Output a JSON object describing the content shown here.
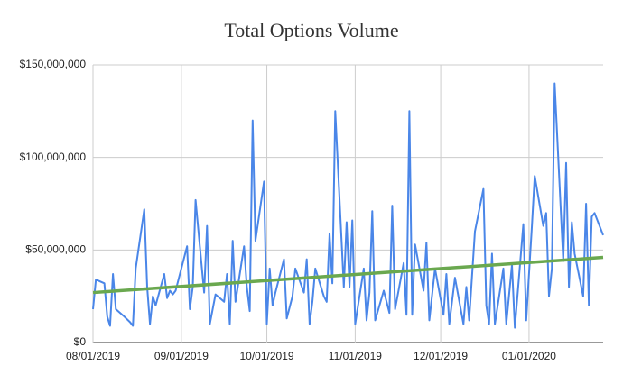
{
  "chart_data": {
    "type": "line",
    "title": "Total Options Volume",
    "x": [
      "08/01/2019",
      "08/02/2019",
      "08/05/2019",
      "08/06/2019",
      "08/07/2019",
      "08/08/2019",
      "08/09/2019",
      "08/12/2019",
      "08/14/2019",
      "08/15/2019",
      "08/16/2019",
      "08/19/2019",
      "08/20/2019",
      "08/21/2019",
      "08/22/2019",
      "08/23/2019",
      "08/26/2019",
      "08/27/2019",
      "08/28/2019",
      "08/29/2019",
      "08/30/2019",
      "09/03/2019",
      "09/04/2019",
      "09/05/2019",
      "09/06/2019",
      "09/09/2019",
      "09/10/2019",
      "09/11/2019",
      "09/13/2019",
      "09/16/2019",
      "09/17/2019",
      "09/18/2019",
      "09/19/2019",
      "09/20/2019",
      "09/23/2019",
      "09/24/2019",
      "09/25/2019",
      "09/26/2019",
      "09/27/2019",
      "09/30/2019",
      "10/01/2019",
      "10/02/2019",
      "10/03/2019",
      "10/04/2019",
      "10/07/2019",
      "10/08/2019",
      "10/10/2019",
      "10/11/2019",
      "10/14/2019",
      "10/15/2019",
      "10/16/2019",
      "10/17/2019",
      "10/18/2019",
      "10/21/2019",
      "10/22/2019",
      "10/23/2019",
      "10/24/2019",
      "10/25/2019",
      "10/28/2019",
      "10/29/2019",
      "10/30/2019",
      "10/31/2019",
      "11/01/2019",
      "11/04/2019",
      "11/05/2019",
      "11/06/2019",
      "11/07/2019",
      "11/08/2019",
      "11/11/2019",
      "11/13/2019",
      "11/14/2019",
      "11/15/2019",
      "11/18/2019",
      "11/19/2019",
      "11/20/2019",
      "11/21/2019",
      "11/22/2019",
      "11/25/2019",
      "11/26/2019",
      "11/27/2019",
      "11/29/2019",
      "12/02/2019",
      "12/03/2019",
      "12/04/2019",
      "12/06/2019",
      "12/09/2019",
      "12/10/2019",
      "12/11/2019",
      "12/13/2019",
      "12/16/2019",
      "12/17/2019",
      "12/18/2019",
      "12/19/2019",
      "12/20/2019",
      "12/23/2019",
      "12/24/2019",
      "12/26/2019",
      "12/27/2019",
      "12/30/2019",
      "12/31/2019",
      "01/02/2020",
      "01/03/2020",
      "01/06/2020",
      "01/07/2020",
      "01/08/2020",
      "01/09/2020",
      "01/10/2020",
      "01/13/2020",
      "01/14/2020",
      "01/15/2020",
      "01/16/2020",
      "01/17/2020",
      "01/20/2020",
      "01/21/2020",
      "01/22/2020",
      "01/23/2020",
      "01/24/2020",
      "01/27/2020"
    ],
    "series": [
      {
        "color": "#4a86e8",
        "values": [
          18000000,
          34000000,
          32000000,
          14000000,
          9000000,
          37000000,
          18000000,
          14000000,
          11000000,
          9000000,
          40000000,
          72000000,
          30000000,
          10000000,
          25000000,
          20000000,
          37000000,
          24000000,
          28000000,
          26000000,
          28000000,
          52000000,
          18000000,
          30000000,
          77000000,
          27000000,
          63000000,
          10000000,
          26000000,
          22000000,
          37000000,
          10000000,
          55000000,
          22000000,
          52000000,
          30000000,
          17000000,
          120000000,
          55000000,
          87000000,
          10000000,
          40000000,
          20000000,
          27000000,
          45000000,
          13000000,
          25000000,
          40000000,
          27000000,
          45000000,
          10000000,
          22000000,
          40000000,
          25000000,
          22000000,
          59000000,
          32000000,
          125000000,
          30000000,
          65000000,
          30000000,
          66000000,
          10000000,
          40000000,
          12000000,
          27000000,
          71000000,
          12000000,
          28000000,
          16000000,
          74000000,
          18000000,
          43000000,
          15000000,
          125000000,
          15000000,
          53000000,
          28000000,
          54000000,
          12000000,
          40000000,
          15000000,
          37000000,
          10000000,
          35000000,
          10000000,
          30000000,
          12000000,
          60000000,
          83000000,
          20000000,
          10000000,
          48000000,
          10000000,
          40000000,
          10000000,
          42000000,
          8000000,
          64000000,
          12000000,
          63000000,
          90000000,
          63000000,
          70000000,
          25000000,
          40000000,
          140000000,
          44000000,
          97000000,
          30000000,
          65000000,
          48000000,
          25000000,
          75000000,
          20000000,
          68000000,
          70000000,
          58000000
        ]
      }
    ],
    "trendline": {
      "color": "#6aa84f",
      "values": [
        27000000,
        46000000
      ]
    },
    "xlim": [
      "08/01/2019",
      "01/27/2020"
    ],
    "xticks": [
      "08/01/2019",
      "09/01/2019",
      "10/01/2019",
      "11/01/2019",
      "12/01/2019",
      "01/01/2020"
    ],
    "ylim": [
      0,
      150000000
    ],
    "yticks": [
      {
        "value": 0,
        "label": "$0"
      },
      {
        "value": 50000000,
        "label": "$50,000,000"
      },
      {
        "value": 100000000,
        "label": "$100,000,000"
      },
      {
        "value": 150000000,
        "label": "$150,000,000"
      }
    ],
    "grid": true
  }
}
